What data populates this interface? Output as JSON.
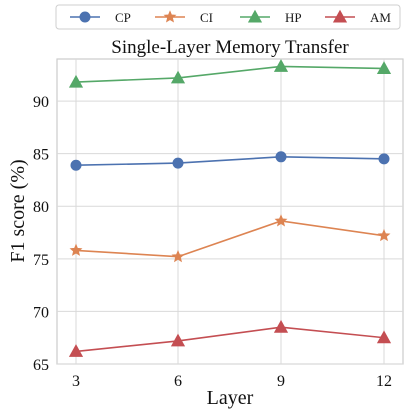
{
  "chart_data": {
    "type": "line",
    "title": "Single-Layer Memory Transfer",
    "xlabel": "Layer",
    "ylabel": "F1 score (%)",
    "x": [
      3,
      6,
      9,
      12
    ],
    "xticks": [
      "3",
      "6",
      "9",
      "12"
    ],
    "yticks": [
      "65",
      "70",
      "75",
      "80",
      "85",
      "90"
    ],
    "ylim": [
      65,
      94
    ],
    "grid": true,
    "legend_position": "top",
    "series": [
      {
        "name": "CP",
        "values": [
          83.9,
          84.1,
          84.7,
          84.5
        ],
        "color": "#4c72b0",
        "marker": "circle"
      },
      {
        "name": "CI",
        "values": [
          75.8,
          75.2,
          78.6,
          77.2
        ],
        "color": "#dd8452",
        "marker": "star"
      },
      {
        "name": "HP",
        "values": [
          91.8,
          92.2,
          93.3,
          93.1
        ],
        "color": "#55a868",
        "marker": "triangle"
      },
      {
        "name": "AM",
        "values": [
          66.2,
          67.2,
          68.5,
          67.5
        ],
        "color": "#c44e52",
        "marker": "triangle"
      }
    ]
  }
}
